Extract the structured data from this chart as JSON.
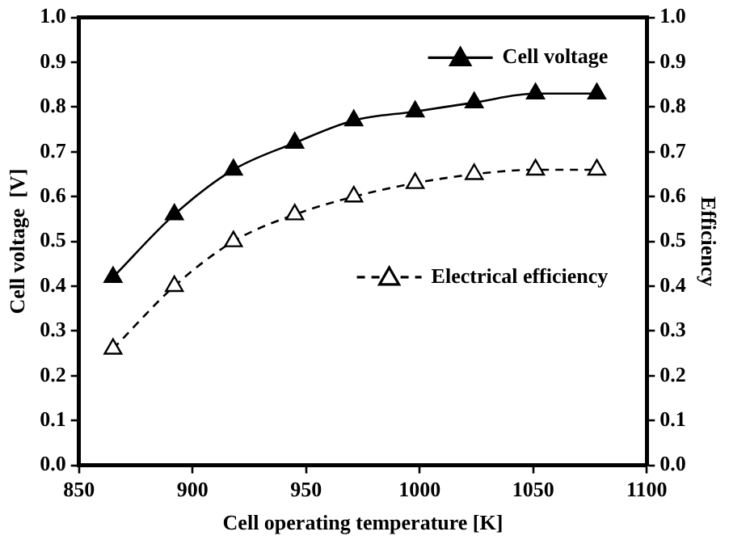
{
  "chart_data": {
    "type": "line",
    "xlabel": "Cell operating temperature [K]",
    "ylabel": "Cell voltage  [V]",
    "y2label": "Efficiency",
    "x": [
      865,
      892,
      918,
      945,
      971,
      998,
      1024,
      1051,
      1078
    ],
    "series": [
      {
        "name": "Cell voltage",
        "color": "#000000",
        "values": [
          0.42,
          0.56,
          0.66,
          0.72,
          0.77,
          0.79,
          0.81,
          0.83,
          0.83
        ],
        "marker": "triangle",
        "line_style": "solid"
      },
      {
        "name": "Electrical efficiency",
        "color": "#000000",
        "values": [
          0.26,
          0.4,
          0.5,
          0.56,
          0.6,
          0.63,
          0.65,
          0.66,
          0.66
        ],
        "marker": "triangle",
        "line_style": "dashed",
        "axis": "y2"
      }
    ],
    "xlim": [
      850,
      1100
    ],
    "xticks": [
      850,
      900,
      950,
      1000,
      1050,
      1100
    ],
    "ylim": [
      0,
      1
    ],
    "yticks": [
      {
        "value": 0,
        "label": "0.0"
      },
      0.1,
      0.2,
      0.3,
      0.4,
      0.5,
      0.6,
      0.7,
      0.8,
      0.9,
      {
        "value": 1,
        "label": "1.0"
      }
    ],
    "y2lim": [
      0,
      1
    ],
    "y2ticks": [
      {
        "value": 0,
        "label": "0.0"
      },
      0.1,
      0.2,
      0.3,
      0.4,
      0.5,
      0.6,
      0.7,
      0.8,
      0.9,
      {
        "value": 1,
        "label": "1.0"
      }
    ],
    "grid": false,
    "legend": "top right"
  }
}
